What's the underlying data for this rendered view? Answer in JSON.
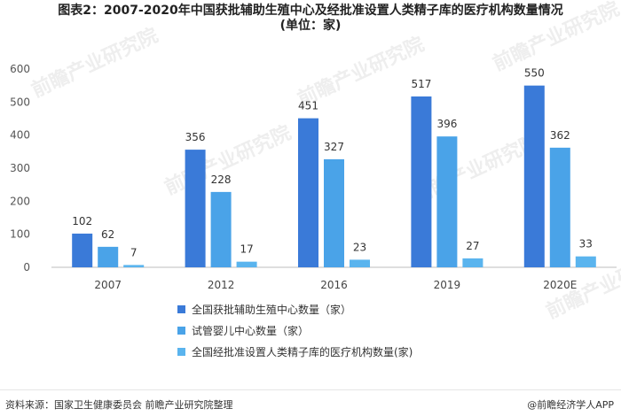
{
  "title": {
    "line1": "图表2：2007-2020年中国获批辅助生殖中心及经批准设置人类精子库的医疗机构数量情况",
    "line2": "(单位：家)"
  },
  "footer": {
    "source": "资料来源：国家卫生健康委员会 前瞻产业研究院整理",
    "brand": "@前瞻经济学人APP"
  },
  "watermark": "前瞻产业研究院",
  "colors": {
    "series1": "#3a7ad8",
    "series2": "#4aa3e8",
    "series3": "#5ab4ee"
  },
  "chart_data": {
    "type": "bar",
    "categories": [
      "2007",
      "2012",
      "2016",
      "2019",
      "2020E"
    ],
    "series": [
      {
        "name": "全国获批辅助生殖中心数量（家）",
        "values": [
          102,
          356,
          451,
          517,
          550
        ]
      },
      {
        "name": "试管婴儿中心数量（家）",
        "values": [
          62,
          228,
          327,
          396,
          362
        ]
      },
      {
        "name": "全国经批准设置人类精子库的医疗机构数量(家)",
        "values": [
          7,
          17,
          23,
          27,
          33
        ]
      }
    ],
    "yticks": [
      0,
      100,
      200,
      300,
      400,
      500,
      600
    ],
    "ylim": [
      0,
      600
    ],
    "grid": false,
    "legend_position": "bottom"
  }
}
